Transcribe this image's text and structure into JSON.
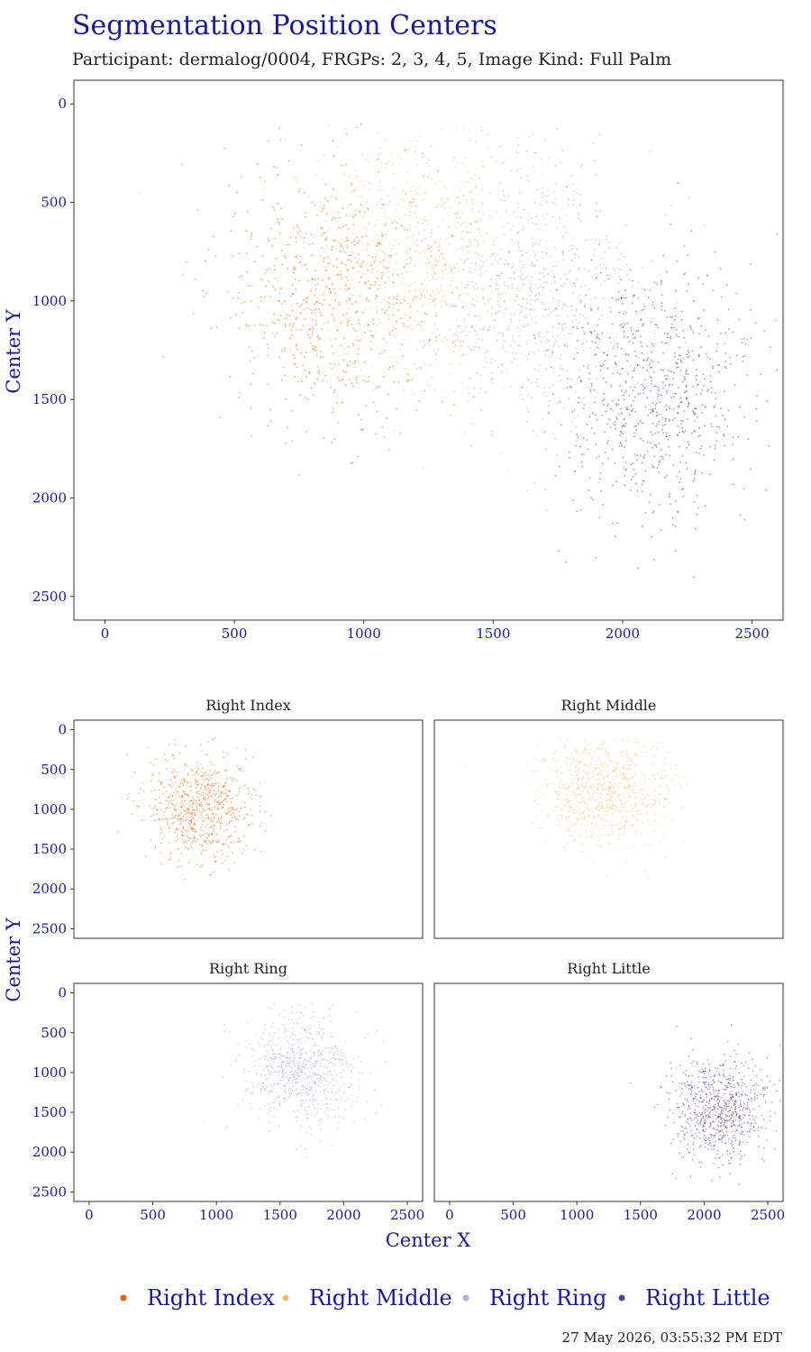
{
  "colors": {
    "accent_text": "#1a1a99",
    "black_text": "#222222",
    "panel_border": "#333333"
  },
  "chart_data": {
    "type": "scatter",
    "title": "Segmentation Position Centers",
    "subtitle": "Participant: dermalog/0004, FRGPs: 2, 3, 4, 5, Image Kind: Full Palm",
    "xlabel": "Center X",
    "ylabel": "Center Y",
    "xlim": [
      -120,
      2620
    ],
    "ylim": [
      -120,
      2620
    ],
    "y_reversed": true,
    "xticks": [
      0,
      500,
      1000,
      1500,
      2000,
      2500
    ],
    "yticks": [
      0,
      500,
      1000,
      1500,
      2000,
      2500
    ],
    "grid": false,
    "legend_position": "bottom",
    "timestamp": "27 May 2026, 03:55:32 PM EDT",
    "series": [
      {
        "name": "Right Index",
        "color": "#e66101",
        "opacity": 0.55,
        "count": 700,
        "center_x": 870,
        "center_y": 980,
        "spread_x": 220,
        "spread_y": 330
      },
      {
        "name": "Right Middle",
        "color": "#fdb863",
        "opacity": 0.55,
        "count": 750,
        "center_x": 1230,
        "center_y": 760,
        "spread_x": 250,
        "spread_y": 340
      },
      {
        "name": "Right Ring",
        "color": "#b2abd2",
        "opacity": 0.6,
        "count": 750,
        "center_x": 1650,
        "center_y": 980,
        "spread_x": 230,
        "spread_y": 360
      },
      {
        "name": "Right Little",
        "color": "#5e3c99",
        "opacity": 0.55,
        "count": 800,
        "center_x": 2130,
        "center_y": 1450,
        "spread_x": 190,
        "spread_y": 330
      }
    ],
    "facets": [
      {
        "label": "Right Index",
        "series": 0
      },
      {
        "label": "Right Middle",
        "series": 1
      },
      {
        "label": "Right Ring",
        "series": 2
      },
      {
        "label": "Right Little",
        "series": 3
      }
    ]
  }
}
